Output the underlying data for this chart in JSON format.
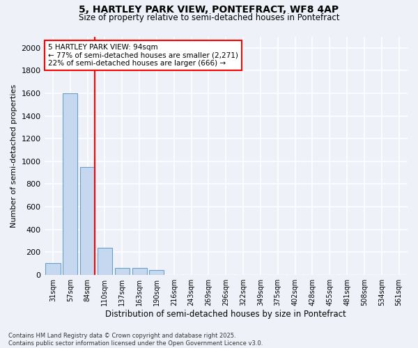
{
  "title_line1": "5, HARTLEY PARK VIEW, PONTEFRACT, WF8 4AP",
  "title_line2": "Size of property relative to semi-detached houses in Pontefract",
  "xlabel": "Distribution of semi-detached houses by size in Pontefract",
  "ylabel": "Number of semi-detached properties",
  "categories": [
    "31sqm",
    "57sqm",
    "84sqm",
    "110sqm",
    "137sqm",
    "163sqm",
    "190sqm",
    "216sqm",
    "243sqm",
    "269sqm",
    "296sqm",
    "322sqm",
    "349sqm",
    "375sqm",
    "402sqm",
    "428sqm",
    "455sqm",
    "481sqm",
    "508sqm",
    "534sqm",
    "561sqm"
  ],
  "values": [
    100,
    1600,
    950,
    240,
    60,
    60,
    40,
    0,
    0,
    0,
    0,
    0,
    0,
    0,
    0,
    0,
    0,
    0,
    0,
    0,
    0
  ],
  "bar_color": "#c5d8ef",
  "bar_edge_color": "#6a9fca",
  "vline_color": "red",
  "vline_bar_index": 2,
  "ylim_max": 2100,
  "yticks": [
    0,
    200,
    400,
    600,
    800,
    1000,
    1200,
    1400,
    1600,
    1800,
    2000
  ],
  "annotation_text": "5 HARTLEY PARK VIEW: 94sqm\n← 77% of semi-detached houses are smaller (2,271)\n22% of semi-detached houses are larger (666) →",
  "annotation_box_color": "white",
  "annotation_box_edge": "red",
  "bg_color": "#eef2f8",
  "grid_color": "white",
  "footer_line1": "Contains HM Land Registry data © Crown copyright and database right 2025.",
  "footer_line2": "Contains public sector information licensed under the Open Government Licence v3.0."
}
